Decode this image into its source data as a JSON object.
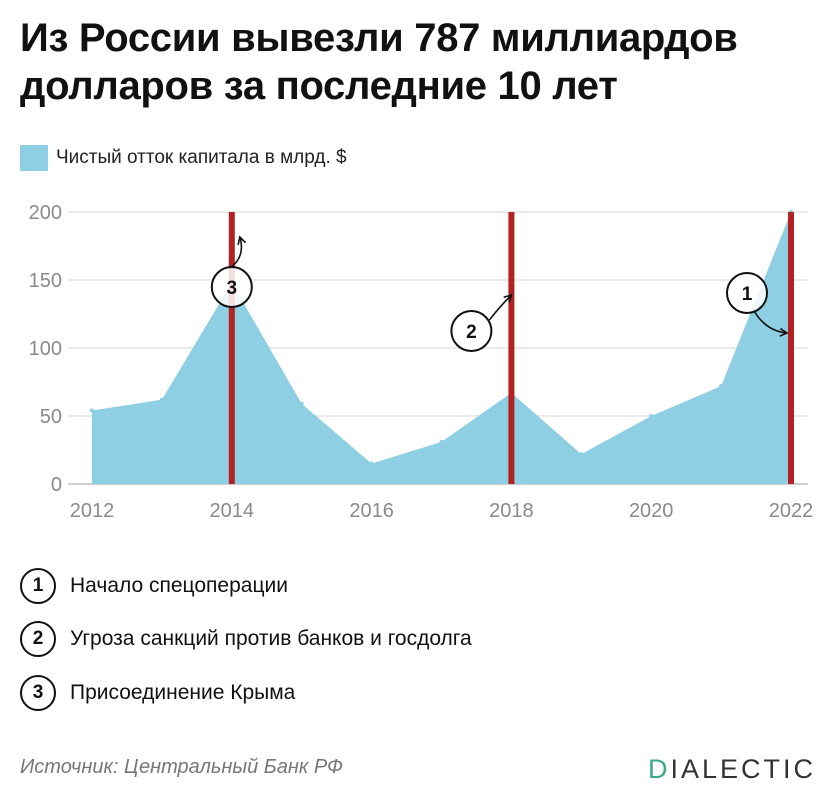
{
  "header": {
    "title": "Из России вывезли 787 миллиардов долларов за последние 10 лет"
  },
  "legend": {
    "label": "Чистый отток капитала в млрд. $",
    "color": "#8ecfe3"
  },
  "chart_data": {
    "type": "area",
    "title": "Из России вывезли 787 миллиардов долларов за последние 10 лет",
    "x": [
      2012,
      2013,
      2014,
      2015,
      2016,
      2017,
      2018,
      2019,
      2020,
      2021,
      2022
    ],
    "series": [
      {
        "name": "Чистый отток капитала в млрд. $",
        "values": [
          54,
          62,
          148,
          59,
          15,
          31,
          67,
          22,
          50,
          72,
          200
        ],
        "color": "#8ecfe3"
      }
    ],
    "x_ticks": [
      "2012",
      "2014",
      "2016",
      "2018",
      "2020",
      "2022"
    ],
    "y_ticks": [
      "0",
      "50",
      "100",
      "150",
      "200"
    ],
    "xlim": [
      2012,
      2022
    ],
    "ylim": [
      0,
      200
    ],
    "grid": true,
    "legend_position": "top-left",
    "event_lines": [
      {
        "x": 2014,
        "marker": "3",
        "color": "#b22222"
      },
      {
        "x": 2018,
        "marker": "2",
        "color": "#b22222"
      },
      {
        "x": 2022,
        "marker": "1",
        "color": "#b22222"
      }
    ]
  },
  "notes": [
    {
      "marker": "1",
      "text": "Начало спецоперации"
    },
    {
      "marker": "2",
      "text": "Угроза санкций против банков и госдолга"
    },
    {
      "marker": "3",
      "text": "Присоединение Крыма"
    }
  ],
  "footer": {
    "source": "Источник: Центральный Банк РФ",
    "brand_first": "D",
    "brand_rest": "IALECTIC",
    "brand_color": "#3aaa8c"
  }
}
